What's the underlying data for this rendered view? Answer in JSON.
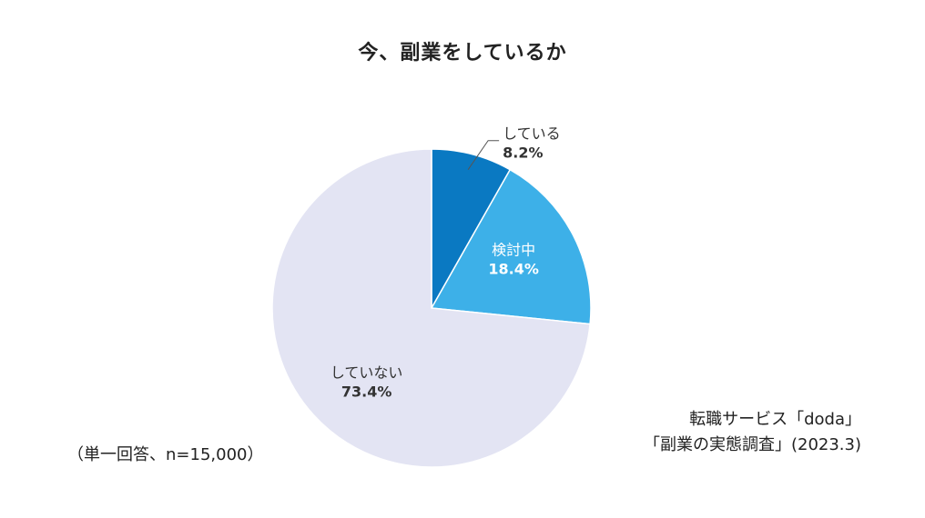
{
  "chart_data": {
    "type": "pie",
    "title": "今、副業をしているか",
    "slices": [
      {
        "label": "している",
        "value": 8.2,
        "value_label": "8.2%",
        "color": "#0a79c2"
      },
      {
        "label": "検討中",
        "value": 18.4,
        "value_label": "18.4%",
        "color": "#3db0e8"
      },
      {
        "label": "していない",
        "value": 73.4,
        "value_label": "73.4%",
        "color": "#e3e4f3"
      }
    ],
    "note": "（単一回答、n=15,000）",
    "source_line1": "転職サービス「doda」",
    "source_line2": "「副業の実態調査」(2023.3)"
  }
}
